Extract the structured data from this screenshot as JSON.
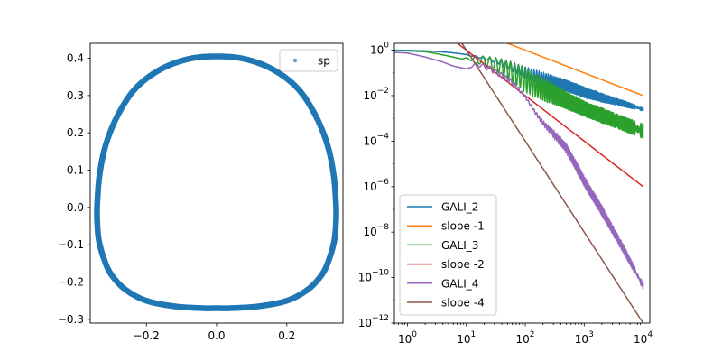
{
  "chart_data": [
    {
      "type": "scatter",
      "xlim": [
        -0.36,
        0.36
      ],
      "ylim": [
        -0.31,
        0.44
      ],
      "x_ticks": [
        -0.2,
        0.0,
        0.2
      ],
      "x_tick_labels": [
        "−0.2",
        "0.0",
        "0.2"
      ],
      "y_ticks": [
        -0.3,
        -0.2,
        -0.1,
        0.0,
        0.1,
        0.2,
        0.3,
        0.4
      ],
      "y_tick_labels": [
        "−0.3",
        "−0.2",
        "−0.1",
        "0.0",
        "0.1",
        "0.2",
        "0.3",
        "0.4"
      ],
      "legend": {
        "placement": "top-right",
        "entries": [
          "sp"
        ]
      },
      "series": [
        {
          "name": "sp",
          "color": "#1f77b4",
          "x": [
            0.0,
            0.08,
            0.16,
            0.23,
            0.28,
            0.315,
            0.333,
            0.34,
            0.34,
            0.335,
            0.32,
            0.3,
            0.26,
            0.2,
            0.12,
            0.04,
            0.0,
            -0.04,
            -0.12,
            -0.2,
            -0.26,
            -0.3,
            -0.32,
            -0.335,
            -0.34,
            -0.34,
            -0.333,
            -0.315,
            -0.28,
            -0.23,
            -0.16,
            -0.08,
            0.0
          ],
          "y": [
            0.405,
            0.398,
            0.37,
            0.32,
            0.25,
            0.17,
            0.09,
            0.01,
            -0.04,
            -0.09,
            -0.14,
            -0.18,
            -0.22,
            -0.25,
            -0.265,
            -0.27,
            -0.27,
            -0.27,
            -0.265,
            -0.25,
            -0.22,
            -0.18,
            -0.14,
            -0.09,
            -0.04,
            0.01,
            0.09,
            0.17,
            0.25,
            0.32,
            0.37,
            0.398,
            0.405
          ]
        }
      ]
    },
    {
      "type": "line",
      "xscale": "log",
      "yscale": "log",
      "xlim": [
        0.6,
        13000
      ],
      "ylim": [
        1e-12,
        2
      ],
      "x_ticks": [
        1,
        10,
        100,
        1000,
        10000
      ],
      "x_tick_labels": [
        [
          "10",
          "0"
        ],
        [
          "10",
          "1"
        ],
        [
          "10",
          "2"
        ],
        [
          "10",
          "3"
        ],
        [
          "10",
          "4"
        ]
      ],
      "y_ticks": [
        1e-12,
        1e-10,
        1e-08,
        1e-06,
        0.0001,
        0.01,
        1
      ],
      "y_tick_labels": [
        [
          "10",
          "−12"
        ],
        [
          "10",
          "−10"
        ],
        [
          "10",
          "−8"
        ],
        [
          "10",
          "−6"
        ],
        [
          "10",
          "−4"
        ],
        [
          "10",
          "−2"
        ],
        [
          "10",
          "0"
        ]
      ],
      "legend": {
        "placement": "lower-left",
        "entries": [
          "GALI_2",
          "slope -1",
          "GALI_3",
          "slope -2",
          "GALI_4",
          "slope -4"
        ]
      },
      "series": [
        {
          "name": "GALI_2",
          "color": "#1f77b4",
          "x": [
            0.6,
            1,
            2,
            3,
            5,
            8,
            12,
            20,
            35,
            60,
            100,
            200,
            500,
            1000,
            2000,
            5000,
            10000
          ],
          "y": [
            1,
            0.98,
            0.93,
            0.88,
            0.8,
            0.7,
            0.6,
            0.5,
            0.4,
            0.28,
            0.18,
            0.1,
            0.05,
            0.025,
            0.013,
            0.006,
            0.003
          ],
          "y_low": [
            1,
            0.98,
            0.93,
            0.88,
            0.8,
            0.7,
            0.55,
            0.4,
            0.25,
            0.12,
            0.06,
            0.03,
            0.015,
            0.008,
            0.005,
            0.003,
            0.002
          ],
          "oscillating": true
        },
        {
          "name": "slope -1",
          "color": "#ff7f0e",
          "x": [
            0.6,
            10000
          ],
          "y": [
            166.7,
            0.01
          ]
        },
        {
          "name": "GALI_3",
          "color": "#2ca02c",
          "x": [
            0.6,
            1,
            2,
            3,
            5,
            8,
            12,
            20,
            35,
            60,
            100,
            200,
            500,
            1000,
            2000,
            5000,
            10000
          ],
          "y": [
            0.95,
            0.93,
            0.85,
            0.72,
            0.55,
            0.42,
            0.5,
            0.55,
            0.45,
            0.3,
            0.15,
            0.06,
            0.015,
            0.006,
            0.003,
            0.0012,
            0.0006
          ],
          "y_low": [
            0.95,
            0.93,
            0.85,
            0.72,
            0.55,
            0.42,
            0.35,
            0.2,
            0.1,
            0.04,
            0.015,
            0.006,
            0.0025,
            0.0012,
            0.0006,
            0.00025,
            0.00012
          ],
          "oscillating": true
        },
        {
          "name": "slope -2",
          "color": "#d62728",
          "x": [
            0.6,
            10000
          ],
          "y": [
            277.8,
            1e-06
          ]
        },
        {
          "name": "GALI_4",
          "color": "#9467bd",
          "x": [
            0.6,
            1,
            2,
            4,
            6,
            10,
            15,
            25,
            40,
            60,
            100,
            150,
            200,
            300,
            500,
            1000,
            2000,
            5000,
            10000
          ],
          "y": [
            0.8,
            0.75,
            0.5,
            0.3,
            0.2,
            0.15,
            0.3,
            0.2,
            0.1,
            0.05,
            0.01,
            0.002,
            0.0008,
            0.0003,
            8e-05,
            3e-06,
            1.5e-07,
            2e-09,
            6e-11
          ],
          "y_low": [
            0.8,
            0.75,
            0.5,
            0.3,
            0.2,
            0.15,
            0.2,
            0.12,
            0.06,
            0.03,
            0.008,
            0.0015,
            0.0005,
            0.00015,
            3e-05,
            1e-06,
            5e-08,
            8e-10,
            3e-11
          ],
          "oscillating": true
        },
        {
          "name": "slope -4",
          "color": "#8c564b",
          "x": [
            6.2,
            10000
          ],
          "y": [
            6.75,
            1e-12
          ]
        }
      ]
    }
  ]
}
